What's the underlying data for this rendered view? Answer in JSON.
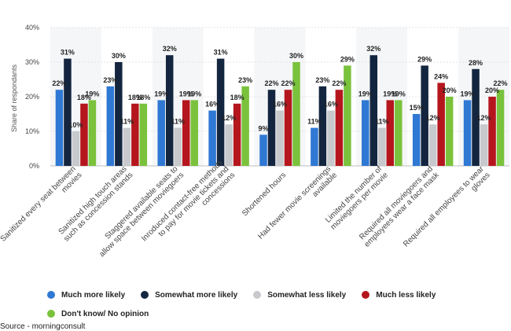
{
  "chart_data": {
    "type": "bar",
    "ylabel": "Share of respondants",
    "ylim": [
      0,
      40
    ],
    "yticks": [
      0,
      10,
      20,
      30,
      40
    ],
    "ytick_suffix": "%",
    "grid": true,
    "legend_position": "bottom",
    "categories": [
      "Sanitized every seat between movies",
      "Sanitized high touch areas such as concession stands",
      "Staggered available seats to allow space between moviegoers",
      "Inroduced contact-free methods to pay for movie tickets and concessions",
      "Shortened hours",
      "Had fewer movie screenings available",
      "Limited the number of moviegoers per movie",
      "Required all moviegoers and employees wear a face mask",
      "Required all employees to wear gloves"
    ],
    "series": [
      {
        "name": "Much more likely",
        "color": "#2f78d4",
        "values": [
          22,
          23,
          19,
          16,
          9,
          11,
          19,
          15,
          19
        ]
      },
      {
        "name": "Somewhat more likely",
        "color": "#14263f",
        "values": [
          31,
          30,
          32,
          31,
          22,
          23,
          32,
          29,
          28
        ]
      },
      {
        "name": "Somewhat less likely",
        "color": "#c7c9cc",
        "values": [
          10,
          11,
          11,
          12,
          16,
          16,
          11,
          12,
          12
        ]
      },
      {
        "name": "Much less likely",
        "color": "#b5161d",
        "values": [
          18,
          18,
          19,
          18,
          22,
          22,
          19,
          24,
          20
        ]
      },
      {
        "name": "Don't know/ No opinion",
        "color": "#7ac23c",
        "values": [
          19,
          18,
          19,
          23,
          30,
          29,
          19,
          20,
          22
        ]
      }
    ]
  },
  "legend": {
    "items": [
      {
        "label": "Much more likely",
        "color": "#2f78d4"
      },
      {
        "label": "Somewhat more likely",
        "color": "#14263f"
      },
      {
        "label": "Somewhat less likely",
        "color": "#c7c9cc"
      },
      {
        "label": "Much less likely",
        "color": "#b5161d"
      },
      {
        "label": "Don't know/ No opinion",
        "color": "#7ac23c"
      }
    ]
  },
  "source": "Source - morningconsult"
}
